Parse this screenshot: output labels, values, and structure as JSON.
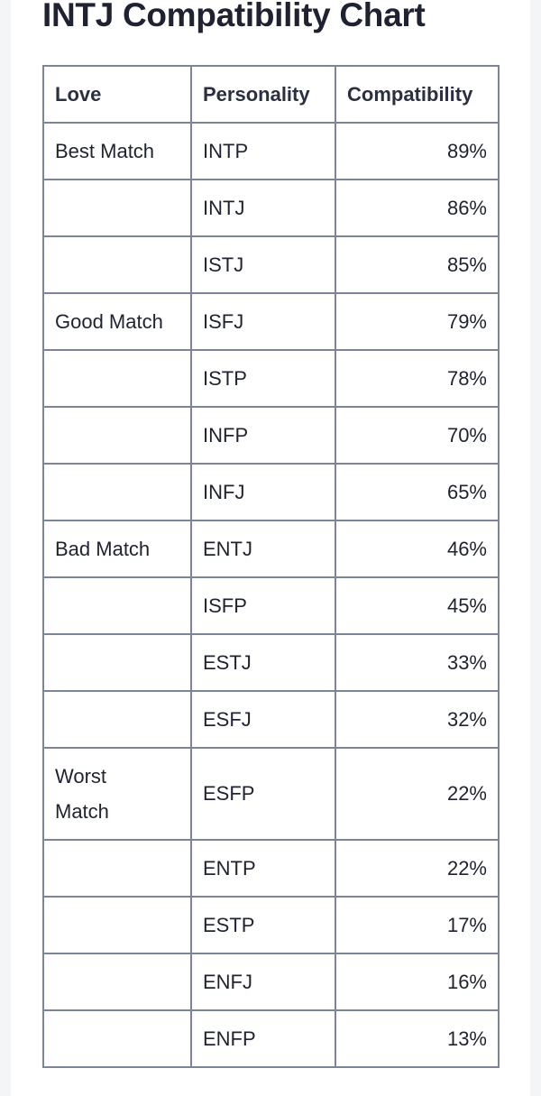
{
  "title": "INTJ Compatibility Chart",
  "table": {
    "headers": [
      "Love",
      "Personality",
      "Compatibility"
    ],
    "rows": [
      {
        "love": "Best Match",
        "personality": "INTP",
        "compatibility": "89%"
      },
      {
        "love": "",
        "personality": "INTJ",
        "compatibility": "86%"
      },
      {
        "love": "",
        "personality": "ISTJ",
        "compatibility": "85%"
      },
      {
        "love": "Good Match",
        "personality": "ISFJ",
        "compatibility": "79%"
      },
      {
        "love": "",
        "personality": "ISTP",
        "compatibility": "78%"
      },
      {
        "love": "",
        "personality": "INFP",
        "compatibility": "70%"
      },
      {
        "love": "",
        "personality": "INFJ",
        "compatibility": "65%"
      },
      {
        "love": "Bad Match",
        "personality": "ENTJ",
        "compatibility": "46%"
      },
      {
        "love": "",
        "personality": "ISFP",
        "compatibility": "45%"
      },
      {
        "love": "",
        "personality": "ESTJ",
        "compatibility": "33%"
      },
      {
        "love": "",
        "personality": "ESFJ",
        "compatibility": "32%"
      },
      {
        "love": "Worst Match",
        "personality": "ESFP",
        "compatibility": "22%"
      },
      {
        "love": "",
        "personality": "ENTP",
        "compatibility": "22%"
      },
      {
        "love": "",
        "personality": "ESTP",
        "compatibility": "17%"
      },
      {
        "love": "",
        "personality": "ENFJ",
        "compatibility": "16%"
      },
      {
        "love": "",
        "personality": "ENFP",
        "compatibility": "13%"
      }
    ]
  }
}
